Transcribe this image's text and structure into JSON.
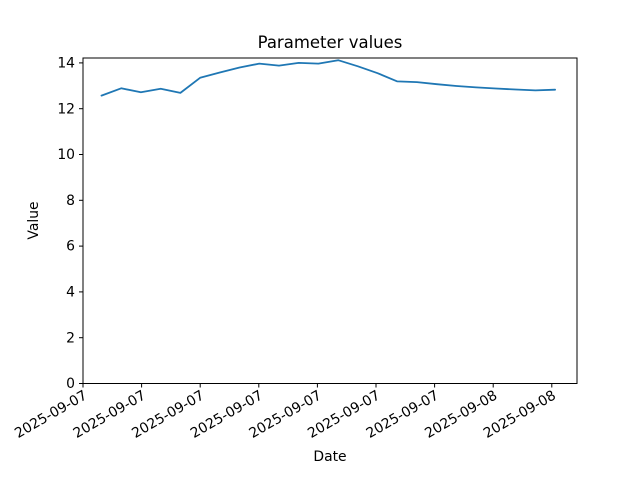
{
  "figure": {
    "background": "#ffffff",
    "spine_color": "#000000",
    "text_color": "#000000"
  },
  "chart_data": {
    "type": "line",
    "title": "Parameter values",
    "xlabel": "Date",
    "ylabel": "Value",
    "x_tick_labels": [
      "2025-09-07",
      "2025-09-07",
      "2025-09-07",
      "2025-09-07",
      "2025-09-07",
      "2025-09-07",
      "2025-09-07",
      "2025-09-08",
      "2025-09-08"
    ],
    "y_tick_labels": [
      "0",
      "2",
      "4",
      "6",
      "8",
      "10",
      "12",
      "14"
    ],
    "y_ticks": [
      0,
      2,
      4,
      6,
      8,
      10,
      12,
      14
    ],
    "ylim": [
      0,
      14.2
    ],
    "grid": false,
    "legend": false,
    "line_color": "#1f77b4",
    "series": [
      {
        "name": "Parameter values",
        "values": [
          12.57,
          12.89,
          12.72,
          12.87,
          12.69,
          13.35,
          13.58,
          13.8,
          13.97,
          13.88,
          14.0,
          13.97,
          14.12,
          13.85,
          13.55,
          13.19,
          13.16,
          13.07,
          12.99,
          12.93,
          12.88,
          12.84,
          12.8,
          12.83
        ]
      }
    ]
  }
}
